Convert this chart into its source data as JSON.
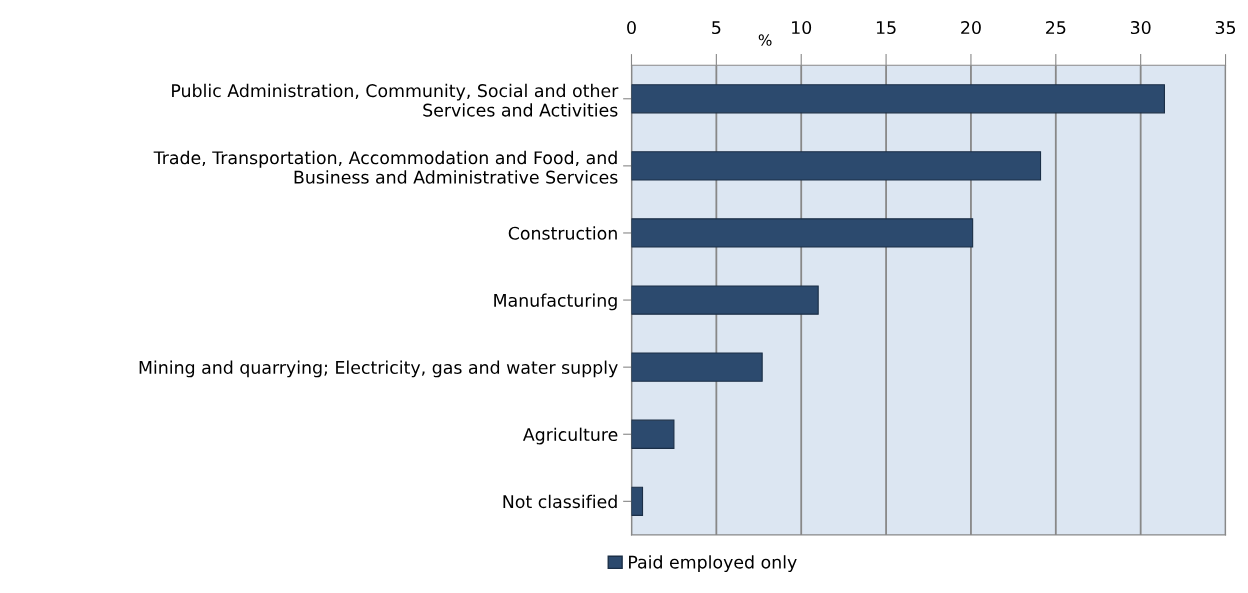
{
  "chart_data": {
    "type": "bar",
    "orientation": "horizontal",
    "xlabel": "%",
    "categories": [
      "Public Administration, Community, Social and other\nServices and Activities",
      "Trade, Transportation, Accommodation and Food, and\nBusiness and Administrative Services",
      "Construction",
      "Manufacturing",
      "Mining and quarrying; Electricity, gas and water supply",
      "Agriculture",
      "Not classified"
    ],
    "series": [
      {
        "name": "Paid employed only",
        "color": "#2c4a6e",
        "values": [
          31.4,
          24.1,
          20.1,
          11.0,
          7.7,
          2.5,
          0.65
        ]
      }
    ],
    "xlim": [
      0,
      35
    ],
    "xticks": [
      0,
      5,
      10,
      15,
      20,
      25,
      30,
      35
    ],
    "grid": "x",
    "legend": "bottom"
  }
}
